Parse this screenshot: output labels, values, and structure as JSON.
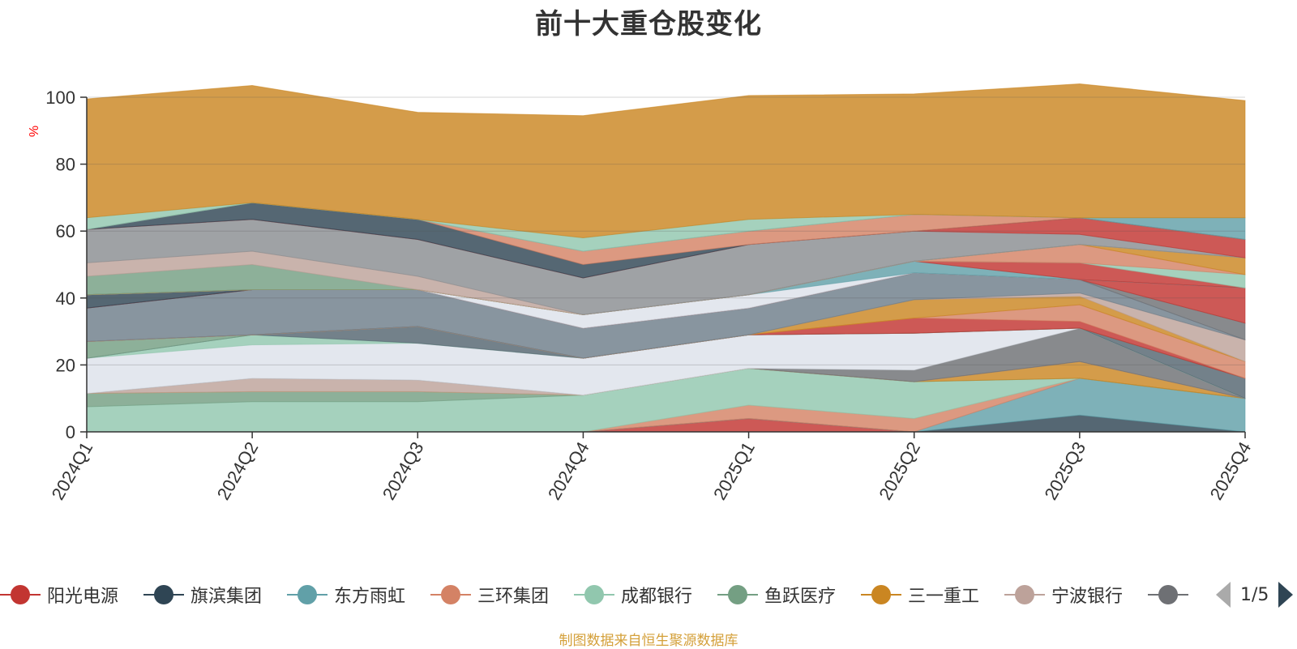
{
  "chart_data": {
    "type": "area",
    "stacked": true,
    "title": "前十大重仓股变化",
    "ylabel": "%",
    "ylim": [
      0,
      100
    ],
    "yticks": [
      0,
      20,
      40,
      60,
      80,
      100
    ],
    "grid": true,
    "categories": [
      "2024Q1",
      "2024Q2",
      "2024Q3",
      "2024Q4",
      "2025Q1",
      "2025Q2",
      "2025Q3",
      "2025Q4"
    ],
    "series": [
      {
        "name": "阳光电源",
        "color": "#c23531",
        "values": [
          0,
          0,
          0,
          0,
          4,
          0,
          0,
          0
        ]
      },
      {
        "name": "旗滨集团",
        "color": "#2f4554",
        "values": [
          0,
          0,
          0,
          0,
          0,
          0,
          5,
          0
        ]
      },
      {
        "name": "东方雨虹",
        "color": "#61a0a8",
        "values": [
          0,
          0,
          0,
          0,
          0,
          0,
          11,
          10
        ]
      },
      {
        "name": "三环集团",
        "color": "#d48265",
        "values": [
          0,
          0,
          0,
          0,
          4,
          4,
          0,
          0
        ]
      },
      {
        "name": "成都银行",
        "color": "#91c7ae",
        "values": [
          7.5,
          9,
          9,
          11,
          11,
          11,
          0,
          0
        ]
      },
      {
        "name": "鱼跃医疗",
        "color": "#749f83",
        "values": [
          4,
          3,
          3,
          0,
          0,
          0,
          0,
          0
        ]
      },
      {
        "name": "三一重工",
        "color": "#ca8622",
        "values": [
          0,
          0,
          0,
          0,
          0,
          0,
          5,
          0
        ]
      },
      {
        "name": "宁波银行",
        "color": "#bda29a",
        "values": [
          0,
          4,
          3.5,
          0,
          0,
          0,
          0,
          0
        ]
      },
      {
        "name": "",
        "color": "#6e7074",
        "values": [
          0,
          0,
          0,
          0,
          0,
          3.5,
          10,
          0
        ]
      },
      {
        "name": "",
        "color": "#dde2ea",
        "values": [
          10.5,
          10,
          11,
          11,
          10,
          11,
          0,
          0
        ]
      },
      {
        "name": "",
        "color": "#91c7ae",
        "values": [
          0,
          3,
          0,
          0,
          0,
          0,
          0,
          0
        ]
      },
      {
        "name": "",
        "color": "#546570",
        "values": [
          0,
          0,
          5,
          0,
          0,
          0,
          0,
          6
        ]
      },
      {
        "name": "",
        "color": "#749f83",
        "values": [
          5,
          0,
          0,
          0,
          0,
          0,
          0,
          0
        ]
      },
      {
        "name": "",
        "color": "#c23531",
        "values": [
          0,
          0,
          0,
          0,
          0,
          4.5,
          2,
          0
        ]
      },
      {
        "name": "",
        "color": "#d48265",
        "values": [
          0,
          0,
          0,
          0,
          0,
          0,
          5,
          5
        ]
      },
      {
        "name": "",
        "color": "#ca8622",
        "values": [
          0,
          0,
          0,
          0,
          0,
          5.5,
          2.5,
          0
        ]
      },
      {
        "name": "",
        "color": "#bda29a",
        "values": [
          0,
          0,
          0,
          0,
          0,
          0,
          1,
          6.5
        ]
      },
      {
        "name": "",
        "color": "#6e7e8a",
        "values": [
          10,
          13.5,
          11,
          9,
          8,
          8,
          4,
          0
        ]
      },
      {
        "name": "",
        "color": "#6e7074",
        "values": [
          0,
          0,
          0,
          0,
          0,
          0,
          0,
          5
        ]
      },
      {
        "name": "",
        "color": "#c23531",
        "values": [
          0,
          0,
          0,
          0,
          0,
          0,
          0,
          10.5
        ]
      },
      {
        "name": "",
        "color": "#2f4554",
        "values": [
          4,
          0,
          0,
          0,
          0,
          0,
          0,
          0
        ]
      },
      {
        "name": "",
        "color": "#dde2ea",
        "values": [
          0,
          0,
          0,
          4,
          4,
          0,
          0,
          0
        ]
      },
      {
        "name": "",
        "color": "#61a0a8",
        "values": [
          0,
          0,
          0,
          0,
          0,
          3.5,
          0,
          0
        ]
      },
      {
        "name": "",
        "color": "#c23531",
        "values": [
          0,
          0,
          0,
          0,
          0,
          0,
          5,
          0
        ]
      },
      {
        "name": "",
        "color": "#91c7ae",
        "values": [
          0,
          0,
          0,
          0,
          0,
          0,
          0,
          4
        ]
      },
      {
        "name": "",
        "color": "#d48265",
        "values": [
          0,
          0,
          0,
          0,
          0,
          0,
          5.5,
          0
        ]
      },
      {
        "name": "",
        "color": "#ca8622",
        "values": [
          0,
          0,
          0,
          0,
          0,
          0,
          0,
          5
        ]
      },
      {
        "name": "",
        "color": "#749f83",
        "values": [
          5.5,
          7.5,
          0,
          0,
          0,
          0,
          0,
          0
        ]
      },
      {
        "name": "",
        "color": "#bda29a",
        "values": [
          4,
          4,
          4,
          0,
          0,
          0,
          0,
          0
        ]
      },
      {
        "name": "",
        "color": "#8a8d91",
        "values": [
          10,
          9.5,
          11,
          11,
          15,
          9,
          3,
          0
        ]
      },
      {
        "name": "",
        "color": "#c23531",
        "values": [
          0,
          0,
          0,
          0,
          0,
          0,
          5,
          5.5
        ]
      },
      {
        "name": "",
        "color": "#2f4554",
        "values": [
          0,
          5,
          6,
          4,
          0,
          0,
          0,
          0
        ]
      },
      {
        "name": "",
        "color": "#d48265",
        "values": [
          0,
          0,
          0,
          4,
          4,
          5,
          0,
          0
        ]
      },
      {
        "name": "",
        "color": "#61a0a8",
        "values": [
          0,
          0,
          0,
          0,
          0,
          0,
          0,
          6.5
        ]
      },
      {
        "name": "",
        "color": "#91c7ae",
        "values": [
          3.5,
          0,
          0,
          4,
          3.5,
          0,
          0,
          0
        ]
      },
      {
        "name": "",
        "color": "#ca8622",
        "values": [
          35.5,
          35,
          32,
          36.5,
          37,
          36,
          40,
          35
        ]
      }
    ]
  },
  "legend": {
    "items": [
      {
        "name": "阳光电源",
        "color": "#c23531"
      },
      {
        "name": "旗滨集团",
        "color": "#2f4554"
      },
      {
        "name": "东方雨虹",
        "color": "#61a0a8"
      },
      {
        "name": "三环集团",
        "color": "#d48265"
      },
      {
        "name": "成都银行",
        "color": "#91c7ae"
      },
      {
        "name": "鱼跃医疗",
        "color": "#749f83"
      },
      {
        "name": "三一重工",
        "color": "#ca8622"
      },
      {
        "name": "宁波银行",
        "color": "#bda29a"
      },
      {
        "name": "",
        "color": "#6e7074"
      }
    ],
    "page_indicator": "1/5"
  },
  "footer": {
    "source_note": "制图数据来自恒生聚源数据库"
  },
  "colors": {
    "title": "#333333",
    "axis": "#333333",
    "ylabel": "#ff0000",
    "footer": "#d4a03a"
  }
}
